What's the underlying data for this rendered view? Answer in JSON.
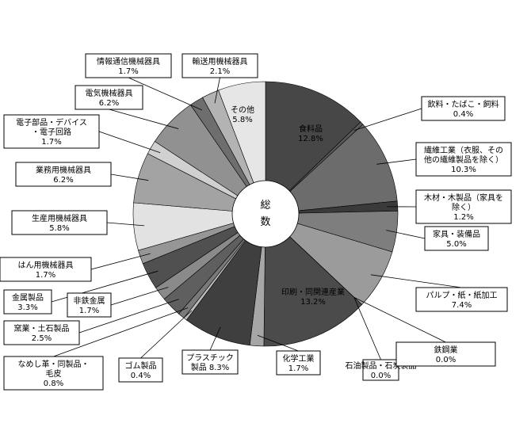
{
  "chart_data": {
    "type": "pie",
    "title": "",
    "center_label": [
      "総",
      "数"
    ],
    "unit": "%",
    "slices": [
      {
        "name": "食料品",
        "value": 12.8,
        "value_label": "12.8%",
        "color": "#474747"
      },
      {
        "name": "飲料・たばこ・飼料",
        "value": 0.4,
        "value_label": "0.4%",
        "color": "#5a5a5a"
      },
      {
        "name": "繊維工業（衣服、その他の繊維製品を除く）",
        "value": 10.3,
        "value_label": "10.3%",
        "color": "#6c6c6c"
      },
      {
        "name": "木材・木製品（家具を除く）",
        "value": 1.2,
        "value_label": "1.2%",
        "color": "#3a3a3a"
      },
      {
        "name": "家具・装備品",
        "value": 5.0,
        "value_label": "5.0%",
        "color": "#7e7e7e"
      },
      {
        "name": "パルプ・紙・紙加工品",
        "value": 7.4,
        "value_label": "7.4%",
        "color": "#9b9b9b"
      },
      {
        "name": "鉄鋼業",
        "value": 0.0,
        "value_label": "0.0%",
        "color": "#555555"
      },
      {
        "name": "石油製品・石炭製品",
        "value": 0.0,
        "value_label": "0.0%",
        "color": "#555555"
      },
      {
        "name": "印刷・同関連産業",
        "value": 13.2,
        "value_label": "13.2%",
        "color": "#4b4b4b"
      },
      {
        "name": "化学工業",
        "value": 1.7,
        "value_label": "1.7%",
        "color": "#a6a6a6"
      },
      {
        "name": "プラスチック製品",
        "value": 8.3,
        "value_label": "8.3%",
        "color": "#3f3f3f"
      },
      {
        "name": "ゴム製品",
        "value": 0.4,
        "value_label": "0.4%",
        "color": "#bdbdbd"
      },
      {
        "name": "なめし革・同製品・毛皮",
        "value": 0.8,
        "value_label": "0.8%",
        "color": "#7a7a7a"
      },
      {
        "name": "窯業・土石製品",
        "value": 2.5,
        "value_label": "2.5%",
        "color": "#5f5f5f"
      },
      {
        "name": "非鉄金属",
        "value": 1.7,
        "value_label": "1.7%",
        "color": "#8a8a8a"
      },
      {
        "name": "金属製品",
        "value": 3.3,
        "value_label": "3.3%",
        "color": "#505050"
      },
      {
        "name": "はん用機械器具",
        "value": 1.7,
        "value_label": "1.7%",
        "color": "#969696"
      },
      {
        "name": "生産用機械器具",
        "value": 5.8,
        "value_label": "5.8%",
        "color": "#e2e2e2"
      },
      {
        "name": "業務用機械器具",
        "value": 6.2,
        "value_label": "6.2%",
        "color": "#a3a3a3"
      },
      {
        "name": "電子部品・デバイス・電子回路",
        "value": 1.7,
        "value_label": "1.7%",
        "color": "#d0d0d0"
      },
      {
        "name": "電気機械器具",
        "value": 6.2,
        "value_label": "6.2%",
        "color": "#919191"
      },
      {
        "name": "情報通信機械器具",
        "value": 1.7,
        "value_label": "1.7%",
        "color": "#6e6e6e"
      },
      {
        "name": "輸送用機械器具",
        "value": 2.1,
        "value_label": "2.1%",
        "color": "#b3b3b3"
      },
      {
        "name": "その他",
        "value": 5.8,
        "value_label": "5.8%",
        "color": "#e6e6e6"
      }
    ],
    "labels": [
      {
        "lines": [
          "食料品",
          "12.8%"
        ],
        "slice": 0
      },
      {
        "lines": [
          "飲料・たばこ・飼料",
          "0.4%"
        ],
        "slice": 1
      },
      {
        "lines": [
          "繊維工業（衣服、その",
          "他の繊維製品を除く）",
          "10.3%"
        ],
        "slice": 2
      },
      {
        "lines": [
          "木材・木製品（家具を",
          "除く）",
          "1.2%"
        ],
        "slice": 3
      },
      {
        "lines": [
          "家具・装備品",
          "5.0%"
        ],
        "slice": 4
      },
      {
        "lines": [
          "パルプ・紙・紙加工",
          "7.4%"
        ],
        "slice": 5
      },
      {
        "lines": [
          "石油製品・石炭製品",
          "0.0%"
        ],
        "slice": 7
      },
      {
        "lines": [
          "鉄鋼業",
          "0.0%"
        ],
        "slice": 6
      },
      {
        "lines": [
          "印刷・同関連産業",
          "13.2%"
        ],
        "slice": 8
      },
      {
        "lines": [
          "化学工業",
          "1.7%"
        ],
        "slice": 9
      },
      {
        "lines": [
          "プラスチック",
          "製品 8.3%"
        ],
        "slice": 10
      },
      {
        "lines": [
          "ゴム製品",
          "0.4%"
        ],
        "slice": 11
      },
      {
        "lines": [
          "なめし革・同製品・",
          "毛皮",
          "0.8%"
        ],
        "slice": 12
      },
      {
        "lines": [
          "窯業・土石製品",
          "2.5%"
        ],
        "slice": 13
      },
      {
        "lines": [
          "非鉄金属",
          "1.7%"
        ],
        "slice": 14
      },
      {
        "lines": [
          "金属製品",
          "3.3%"
        ],
        "slice": 15
      },
      {
        "lines": [
          "はん用機械器具",
          "1.7%"
        ],
        "slice": 16
      },
      {
        "lines": [
          "生産用機械器具",
          "5.8%"
        ],
        "slice": 17
      },
      {
        "lines": [
          "業務用機械器具",
          "6.2%"
        ],
        "slice": 18
      },
      {
        "lines": [
          "電子部品・デバイス",
          "・電子回路",
          "1.7%"
        ],
        "slice": 19
      },
      {
        "lines": [
          "電気機械器具",
          "6.2%"
        ],
        "slice": 20
      },
      {
        "lines": [
          "情報通信機械器具",
          "1.7%"
        ],
        "slice": 21
      },
      {
        "lines": [
          "輸送用機械器具",
          "2.1%"
        ],
        "slice": 22
      },
      {
        "lines": [
          "その他",
          "5.8%"
        ],
        "slice": 23
      }
    ]
  }
}
